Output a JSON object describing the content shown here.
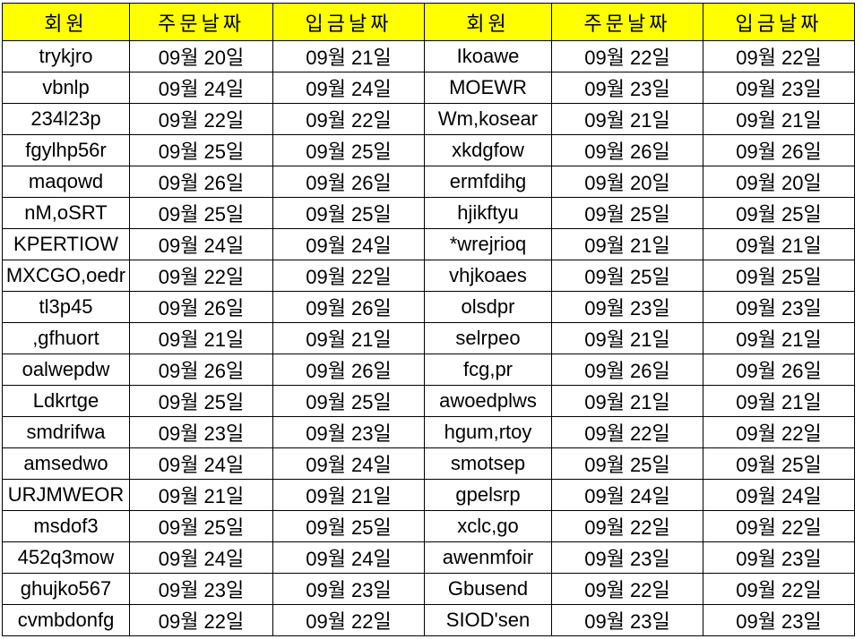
{
  "headers": [
    "회원",
    "주문날짜",
    "입금날짜",
    "회원",
    "주문날짜",
    "입금날짜"
  ],
  "colors": {
    "header_bg": "#ffff00",
    "border": "#000000"
  },
  "rows": [
    [
      "trykjro",
      "09월 20일",
      "09월 21일",
      "Ikoawe",
      "09월 22일",
      "09월 22일"
    ],
    [
      "vbnlp",
      "09월 24일",
      "09월 24일",
      "MOEWR",
      "09월 23일",
      "09월 23일"
    ],
    [
      "234l23p",
      "09월 22일",
      "09월 22일",
      "Wm,kosear",
      "09월 21일",
      "09월 21일"
    ],
    [
      "fgylhp56r",
      "09월 25일",
      "09월 25일",
      "xkdgfow",
      "09월 26일",
      "09월 26일"
    ],
    [
      "maqowd",
      "09월 26일",
      "09월 26일",
      "ermfdihg",
      "09월 20일",
      "09월 20일"
    ],
    [
      "nM,oSRT",
      "09월 25일",
      "09월 25일",
      "hjikftyu",
      "09월 25일",
      "09월 25일"
    ],
    [
      "KPERTIOW",
      "09월 24일",
      "09월 24일",
      "*wrejrioq",
      "09월 21일",
      "09월 21일"
    ],
    [
      "MXCGO,oedr",
      "09월 22일",
      "09월 22일",
      "vhjkoaes",
      "09월 25일",
      "09월 25일"
    ],
    [
      "tl3p45",
      "09월 26일",
      "09월 26일",
      "olsdpr",
      "09월 23일",
      "09월 23일"
    ],
    [
      ",gfhuort",
      "09월 21일",
      "09월 21일",
      "selrpeo",
      "09월 21일",
      "09월 21일"
    ],
    [
      "oalwepdw",
      "09월 26일",
      "09월 26일",
      "fcg,pr",
      "09월 26일",
      "09월 26일"
    ],
    [
      "Ldkrtge",
      "09월 25일",
      "09월 25일",
      "awoedplws",
      "09월 21일",
      "09월 21일"
    ],
    [
      "smdrifwa",
      "09월 23일",
      "09월 23일",
      "hgum,rtoy",
      "09월 22일",
      "09월 22일"
    ],
    [
      "amsedwo",
      "09월 24일",
      "09월 24일",
      "smotsep",
      "09월 25일",
      "09월 25일"
    ],
    [
      "URJMWEOR",
      "09월 21일",
      "09월 21일",
      "gpelsrp",
      "09월 24일",
      "09월 24일"
    ],
    [
      "msdof3",
      "09월 25일",
      "09월 25일",
      "xclc,go",
      "09월 22일",
      "09월 22일"
    ],
    [
      "452q3mow",
      "09월 24일",
      "09월 24일",
      "awenmfoir",
      "09월 23일",
      "09월 23일"
    ],
    [
      "ghujko567",
      "09월 23일",
      "09월 23일",
      "Gbusend",
      "09월 22일",
      "09월 22일"
    ],
    [
      "cvmbdonfg",
      "09월 22일",
      "09월 22일",
      "SIOD'sen",
      "09월 23일",
      "09월 23일"
    ]
  ]
}
